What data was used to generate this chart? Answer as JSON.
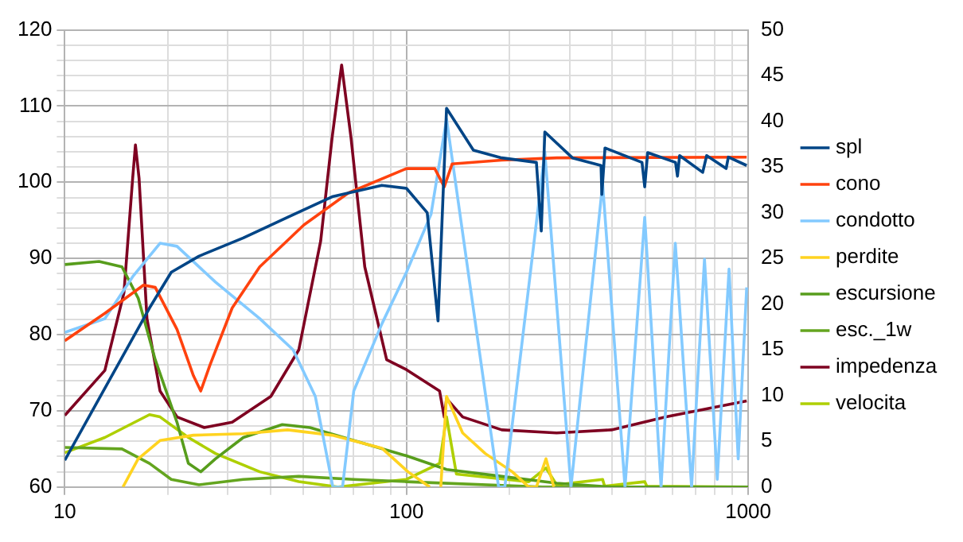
{
  "chart_data": {
    "type": "line",
    "legend": "right",
    "grid": true,
    "log": "x",
    "marker": "none",
    "line_style": "solid",
    "xlim": [
      10,
      1000
    ],
    "xticks": [
      10,
      {
        "value": 20,
        "label": null
      },
      {
        "value": 30,
        "label": null
      },
      {
        "value": 40,
        "label": null
      },
      {
        "value": 50,
        "label": null
      },
      {
        "value": 60,
        "label": null
      },
      {
        "value": 70,
        "label": null
      },
      {
        "value": 80,
        "label": null
      },
      {
        "value": 90,
        "label": null
      },
      100,
      {
        "value": 200,
        "label": null
      },
      {
        "value": 300,
        "label": null
      },
      {
        "value": 400,
        "label": null
      },
      {
        "value": 500,
        "label": null
      },
      {
        "value": 600,
        "label": null
      },
      {
        "value": 700,
        "label": null
      },
      {
        "value": 800,
        "label": null
      },
      {
        "value": 900,
        "label": null
      },
      1000
    ],
    "ylim": [
      60,
      120
    ],
    "yticks": [
      60,
      {
        "value": 62,
        "label": null
      },
      {
        "value": 64,
        "label": null
      },
      {
        "value": 66,
        "label": null
      },
      {
        "value": 68,
        "label": null
      },
      70,
      {
        "value": 72,
        "label": null
      },
      {
        "value": 74,
        "label": null
      },
      {
        "value": 76,
        "label": null
      },
      {
        "value": 78,
        "label": null
      },
      80,
      {
        "value": 82,
        "label": null
      },
      {
        "value": 84,
        "label": null
      },
      {
        "value": 86,
        "label": null
      },
      {
        "value": 88,
        "label": null
      },
      90,
      {
        "value": 92,
        "label": null
      },
      {
        "value": 94,
        "label": null
      },
      {
        "value": 96,
        "label": null
      },
      {
        "value": 98,
        "label": null
      },
      100,
      {
        "value": 102,
        "label": null
      },
      {
        "value": 104,
        "label": null
      },
      {
        "value": 106,
        "label": null
      },
      {
        "value": 108,
        "label": null
      },
      110,
      {
        "value": 112,
        "label": null
      },
      {
        "value": 114,
        "label": null
      },
      {
        "value": 116,
        "label": null
      },
      {
        "value": 118,
        "label": null
      },
      120
    ],
    "y2lim": [
      0,
      50
    ],
    "y2ticks": [
      0,
      5,
      10,
      15,
      20,
      25,
      30,
      35,
      40,
      45,
      50
    ],
    "series": [
      {
        "name": "spl",
        "color": "#004586",
        "x": [
          10,
          17.7,
          20.5,
          24.7,
          33.3,
          44.9,
          60.6,
          84.7,
          100,
          115,
          123.7,
          131,
          157,
          190,
          240,
          248,
          254,
          306,
          371,
          373,
          381,
          489,
          498,
          508,
          613,
          621,
          630,
          736,
          756,
          862,
          875,
          990
        ],
        "values": [
          63.5,
          83.5,
          88.2,
          90.3,
          92.7,
          95.4,
          98.1,
          99.6,
          99.2,
          96,
          81.8,
          109.7,
          104.2,
          103.2,
          102.6,
          93.6,
          106.6,
          103.2,
          102.2,
          98.4,
          104.5,
          102.6,
          99.4,
          103.9,
          102.6,
          100.8,
          103.5,
          101.3,
          103.5,
          101.8,
          103.3,
          102.2
        ]
      },
      {
        "name": "cono",
        "color": "#ff420e",
        "x": [
          10,
          13.1,
          17,
          18.4,
          21.3,
          23.8,
          25,
          26.6,
          30.9,
          37.2,
          50.1,
          67.6,
          100,
          121,
          129,
          136,
          190,
          275,
          990
        ],
        "values": [
          79.2,
          82.8,
          86.5,
          86.2,
          80.7,
          74.6,
          72.6,
          76,
          83.5,
          88.9,
          94.4,
          98.6,
          101.8,
          101.8,
          99.4,
          102.4,
          102.9,
          103.2,
          103.3
        ]
      },
      {
        "name": "condotto",
        "color": "#83caff",
        "x": [
          10,
          13.1,
          15.8,
          19,
          21.3,
          27.6,
          37.2,
          46.6,
          54.1,
          60.9,
          65,
          70.1,
          84.7,
          100,
          118,
          131,
          186,
          194,
          254,
          303,
          375,
          436,
          498,
          556,
          612,
          683,
          745,
          812,
          879,
          935,
          990
        ],
        "values": [
          80.3,
          82.1,
          87.6,
          92,
          91.6,
          86.9,
          82.1,
          78,
          71.9,
          60,
          60,
          72.6,
          81.4,
          88.2,
          95.8,
          108.3,
          60,
          60,
          104,
          60,
          99.8,
          60,
          95.4,
          60,
          92,
          60,
          89.9,
          61,
          88.6,
          63.7,
          86.2
        ]
      },
      {
        "name": "perdite",
        "color": "#ffd320",
        "x": [
          14.8,
          16.4,
          19,
          23.8,
          33.3,
          44.9,
          60.6,
          84.7,
          101,
          117,
          120,
          126,
          131,
          146,
          170,
          204,
          228,
          240,
          256,
          270
        ],
        "values": [
          60,
          63.7,
          66.1,
          66.8,
          67,
          67.5,
          66.8,
          65.1,
          62,
          60,
          null,
          60,
          71.9,
          67.1,
          64.4,
          62,
          60,
          60,
          63.7,
          60
        ]
      },
      {
        "name": "escursione",
        "color": "#579d1c",
        "x": [
          10,
          12.6,
          14.7,
          16.4,
          18.4,
          21.3,
          23,
          25,
          27.6,
          33.3,
          43.3,
          52.2,
          70.1,
          100,
          131,
          190,
          275,
          398,
          1000
        ],
        "values": [
          89.2,
          89.6,
          88.9,
          84.8,
          76.7,
          68.5,
          63.1,
          62,
          63.7,
          66.5,
          68.2,
          67.8,
          66.1,
          64.1,
          62.3,
          61.4,
          60.5,
          60,
          60
        ]
      },
      {
        "name": "esc._1w",
        "color": "#64a51f",
        "x": [
          10,
          14.7,
          17.7,
          20.5,
          24.7,
          33.3,
          48.4,
          70.1,
          100,
          250,
          1000
        ],
        "values": [
          65.2,
          65,
          63.1,
          61,
          60.3,
          61,
          61.4,
          61,
          60.7,
          60,
          60
        ]
      },
      {
        "name": "impedenza",
        "color": "#7e0021",
        "x": [
          10,
          13.1,
          14.9,
          15.8,
          16.1,
          16.5,
          17.4,
          19,
          21.3,
          25.6,
          30.9,
          40.1,
          48.4,
          56.1,
          60.6,
          64.6,
          68.8,
          75.5,
          87.5,
          100,
          125,
          129,
          131,
          146,
          190,
          275,
          398,
          575,
          990
        ],
        "values": [
          69.4,
          75.3,
          85.5,
          100.5,
          104.9,
          100.5,
          82.1,
          72.6,
          69.2,
          67.8,
          68.5,
          71.9,
          78,
          92.3,
          105.9,
          115.4,
          105.9,
          88.9,
          76.7,
          75.4,
          72.6,
          69.2,
          71.6,
          69.2,
          67.5,
          67.1,
          67.5,
          69.2,
          71.3
        ]
      },
      {
        "name": "velocita",
        "color": "#aecf00",
        "x": [
          10,
          13.1,
          17.7,
          19,
          23,
          27.6,
          37.2,
          48.4,
          63,
          100,
          125,
          131,
          140,
          228,
          256,
          275,
          375,
          380,
          498,
          505,
          1000
        ],
        "values": [
          64.5,
          66.5,
          69.5,
          69.2,
          66.5,
          64.4,
          62,
          60.7,
          60,
          61,
          63.1,
          69.2,
          61.7,
          60.7,
          62.5,
          60.3,
          61,
          60.1,
          60.7,
          60.1,
          60
        ]
      }
    ]
  }
}
